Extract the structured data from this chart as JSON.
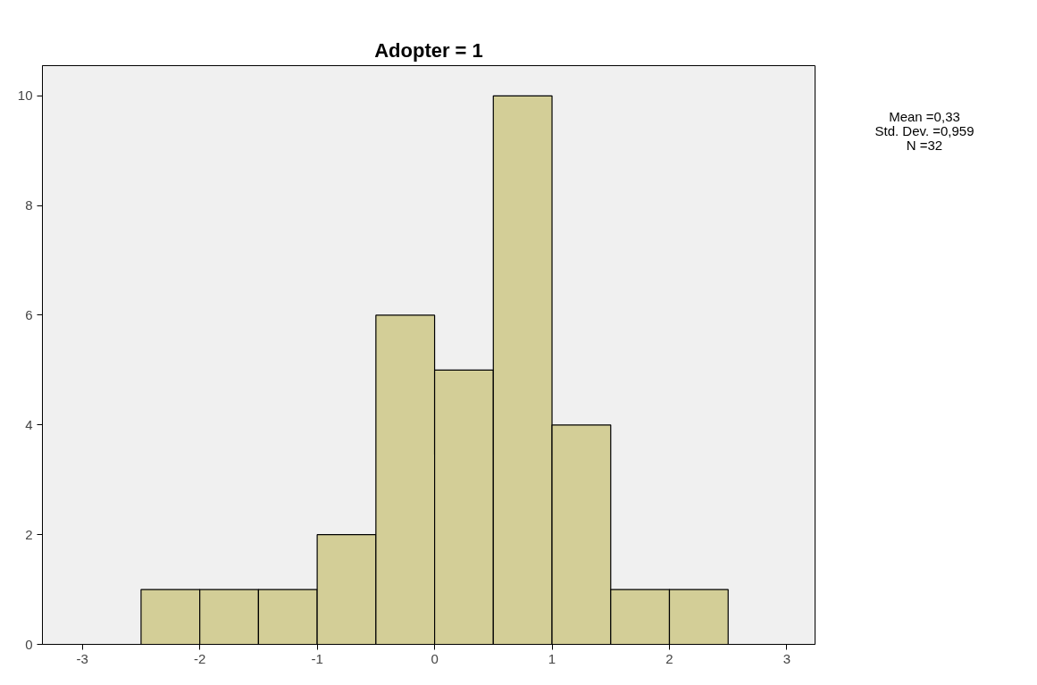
{
  "chart_data": {
    "type": "histogram",
    "title": "Adopter = 1",
    "bins": [
      -2.5,
      -2.0,
      -1.5,
      -1.0,
      -0.5,
      0.0,
      0.5,
      1.0,
      1.5,
      2.0,
      2.5
    ],
    "values": [
      1,
      1,
      1,
      2,
      6,
      5,
      10,
      4,
      1,
      1
    ],
    "color": "#d3ce97",
    "xlim": [
      -3.34,
      3.24
    ],
    "xticks": [
      -3,
      -2,
      -1,
      0,
      1,
      2,
      3
    ],
    "ylim": [
      0,
      10.55
    ],
    "yticks": [
      0,
      2,
      4,
      6,
      8,
      10
    ],
    "grid": false,
    "annotations": [
      "Mean =0,33",
      "Std. Dev. =0,959",
      "N =32"
    ]
  }
}
